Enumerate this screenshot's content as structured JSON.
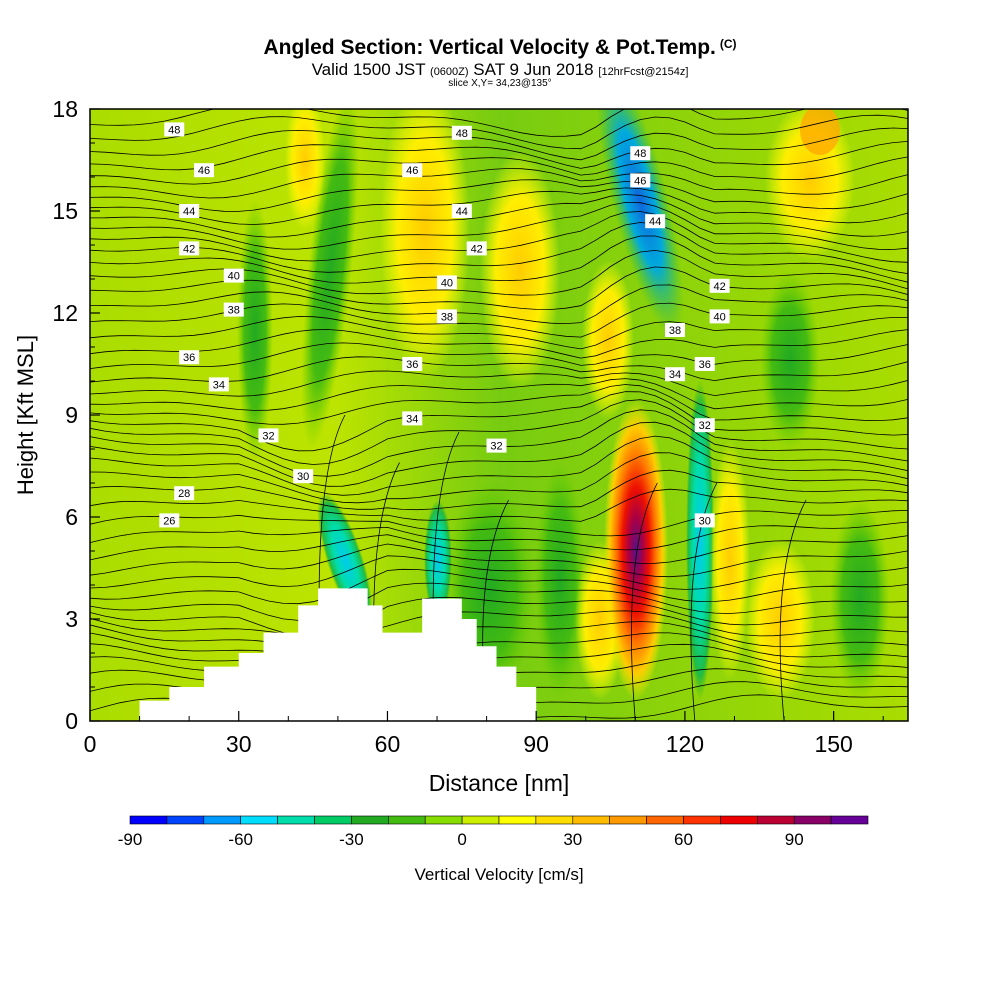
{
  "header": {
    "title": "Angled Section: Vertical Velocity & Pot.Temp.",
    "title_suffix": "(C)",
    "sub_valid": "Valid 1500 JST",
    "sub_z": "(0600Z)",
    "sub_date": "SAT 9 Jun 2018",
    "sub_fcst": "[12hrFcst@2154z]",
    "slice": "slice X,Y= 34,23@135°"
  },
  "chart_data": {
    "type": "heatmap",
    "xlabel": "Distance [nm]",
    "ylabel": "Height [Kft MSL]",
    "xlim": [
      0,
      165
    ],
    "ylim": [
      0,
      18
    ],
    "x_ticks": [
      0,
      30,
      60,
      90,
      120,
      150
    ],
    "y_ticks": [
      0,
      3,
      6,
      9,
      12,
      15,
      18
    ],
    "colorbar": {
      "label": "Vertical Velocity [cm/s]",
      "range": [
        -90,
        110
      ],
      "step": 10,
      "tick_values": [
        -90,
        -60,
        -30,
        0,
        30,
        60,
        90
      ],
      "colors": [
        "#0000ff",
        "#0044ff",
        "#0099ff",
        "#00ddff",
        "#00ddaa",
        "#00cc66",
        "#22aa22",
        "#44bb11",
        "#88dd00",
        "#ccee00",
        "#ffff00",
        "#ffdd00",
        "#ffbb00",
        "#ff9900",
        "#ff6600",
        "#ff3300",
        "#ee0000",
        "#bb0033",
        "#880066",
        "#660099"
      ]
    },
    "terrain": [
      [
        10,
        0.6
      ],
      [
        16,
        1.0
      ],
      [
        23,
        1.6
      ],
      [
        30,
        2.0
      ],
      [
        35,
        2.6
      ],
      [
        42,
        3.4
      ],
      [
        46,
        3.9
      ],
      [
        53,
        3.9
      ],
      [
        56,
        3.4
      ],
      [
        59,
        2.6
      ],
      [
        64,
        2.6
      ],
      [
        67,
        3.6
      ],
      [
        72,
        3.6
      ],
      [
        75,
        3.0
      ],
      [
        78,
        2.2
      ],
      [
        82,
        1.6
      ],
      [
        86,
        1.0
      ],
      [
        90,
        0.6
      ]
    ],
    "theta_label_values": [
      "48",
      "46",
      "44",
      "42",
      "40",
      "38",
      "36",
      "34",
      "32",
      "30",
      "28",
      "26"
    ],
    "theta_labels": [
      {
        "x": 17,
        "y": 17.4,
        "t": "48"
      },
      {
        "x": 75,
        "y": 17.3,
        "t": "48"
      },
      {
        "x": 111,
        "y": 16.7,
        "t": "48"
      },
      {
        "x": 23,
        "y": 16.2,
        "t": "46"
      },
      {
        "x": 65,
        "y": 16.2,
        "t": "46"
      },
      {
        "x": 111,
        "y": 15.9,
        "t": "46"
      },
      {
        "x": 20,
        "y": 15.0,
        "t": "44"
      },
      {
        "x": 75,
        "y": 15.0,
        "t": "44"
      },
      {
        "x": 114,
        "y": 14.7,
        "t": "44"
      },
      {
        "x": 20,
        "y": 13.9,
        "t": "42"
      },
      {
        "x": 78,
        "y": 13.9,
        "t": "42"
      },
      {
        "x": 127,
        "y": 12.8,
        "t": "42"
      },
      {
        "x": 29,
        "y": 13.1,
        "t": "40"
      },
      {
        "x": 72,
        "y": 12.9,
        "t": "40"
      },
      {
        "x": 127,
        "y": 11.9,
        "t": "40"
      },
      {
        "x": 29,
        "y": 12.1,
        "t": "38"
      },
      {
        "x": 72,
        "y": 11.9,
        "t": "38"
      },
      {
        "x": 118,
        "y": 11.5,
        "t": "38"
      },
      {
        "x": 20,
        "y": 10.7,
        "t": "36"
      },
      {
        "x": 65,
        "y": 10.5,
        "t": "36"
      },
      {
        "x": 124,
        "y": 10.5,
        "t": "36"
      },
      {
        "x": 26,
        "y": 9.9,
        "t": "34"
      },
      {
        "x": 65,
        "y": 8.9,
        "t": "34"
      },
      {
        "x": 118,
        "y": 10.2,
        "t": "34"
      },
      {
        "x": 36,
        "y": 8.4,
        "t": "32"
      },
      {
        "x": 82,
        "y": 8.1,
        "t": "32"
      },
      {
        "x": 124,
        "y": 8.7,
        "t": "32"
      },
      {
        "x": 43,
        "y": 7.2,
        "t": "30"
      },
      {
        "x": 124,
        "y": 5.9,
        "t": "30"
      },
      {
        "x": 19,
        "y": 6.7,
        "t": "28"
      },
      {
        "x": 16,
        "y": 5.9,
        "t": "26"
      }
    ]
  }
}
